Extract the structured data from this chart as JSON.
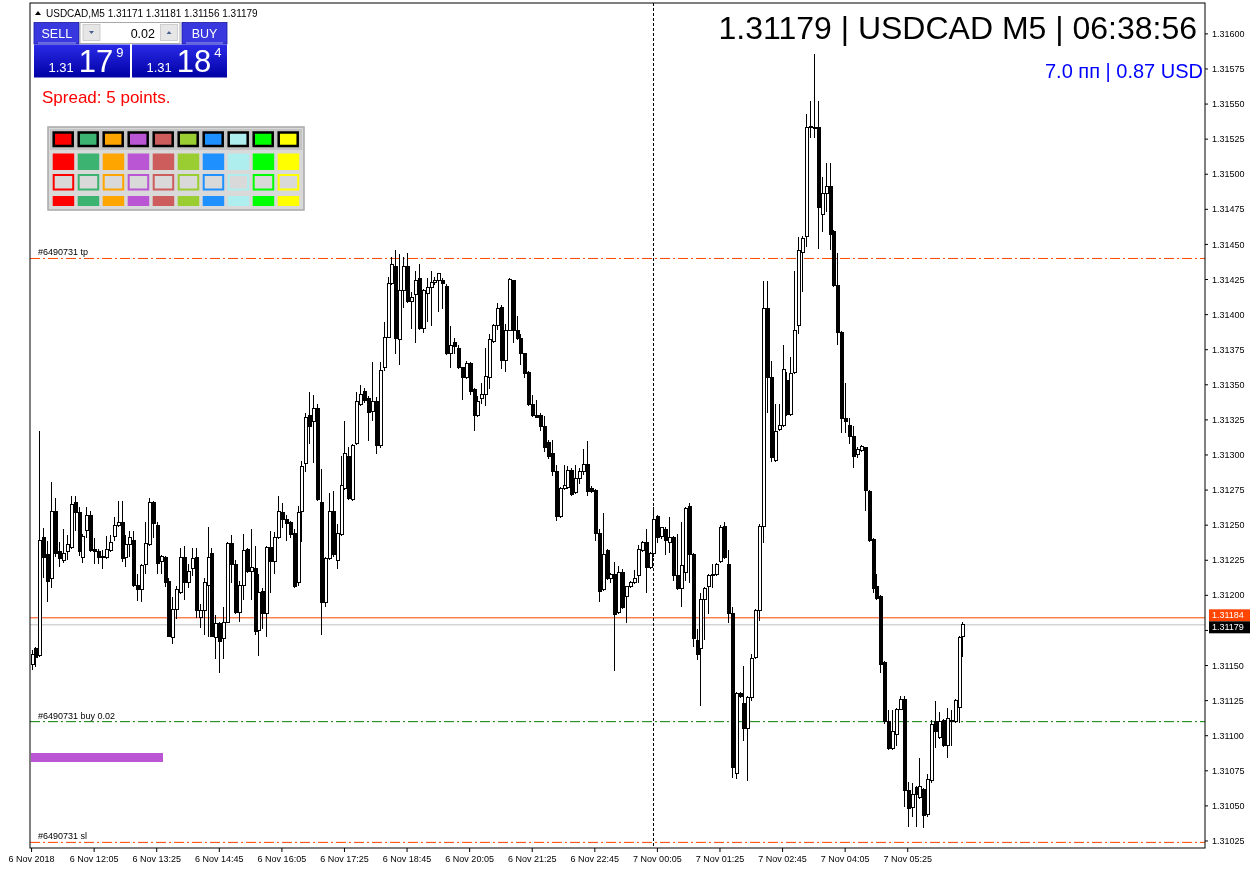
{
  "chart_data": {
    "type": "candlestick",
    "title": "1.31179 | USDCAD M5 | 06:38:56",
    "subtitle": "7.0 пп | 0.87 USD",
    "annotations": [
      "USDCAD,M5 1.31171 1.31181 1.31156 1.31179",
      "SELL",
      "0.02",
      "BUY",
      "1.31 17$^{9}$",
      "1.31 18$^{4}$",
      "Spread: 5 points."
    ],
    "color": "#000000",
    "x": [
      "2018-11-06T10:45",
      "2018-11-06T10:50",
      "2018-11-06T10:55",
      "2018-11-06T11:00",
      "2018-11-06T11:05",
      "2018-11-06T11:10",
      "2018-11-06T11:15",
      "2018-11-06T11:20",
      "2018-11-06T11:25",
      "2018-11-06T11:30",
      "2018-11-06T11:35",
      "2018-11-06T11:40",
      "2018-11-06T11:45",
      "2018-11-06T11:50",
      "2018-11-06T11:55",
      "2018-11-06T12:00",
      "2018-11-06T12:05",
      "2018-11-06T12:10",
      "2018-11-06T12:15",
      "2018-11-06T12:20",
      "2018-11-06T12:25",
      "2018-11-06T12:30",
      "2018-11-06T12:35",
      "2018-11-06T12:40",
      "2018-11-06T12:45",
      "2018-11-06T12:50",
      "2018-11-06T12:55",
      "2018-11-06T13:00",
      "2018-11-06T13:05",
      "2018-11-06T13:10",
      "2018-11-06T13:15",
      "2018-11-06T13:20",
      "2018-11-06T13:25",
      "2018-11-06T13:30",
      "2018-11-06T13:35",
      "2018-11-06T13:40",
      "2018-11-06T13:45",
      "2018-11-06T13:50",
      "2018-11-06T13:55",
      "2018-11-06T14:00",
      "2018-11-06T14:05",
      "2018-11-06T14:10",
      "2018-11-06T14:15",
      "2018-11-06T14:20",
      "2018-11-06T14:25",
      "2018-11-06T14:30",
      "2018-11-06T14:35",
      "2018-11-06T14:40",
      "2018-11-06T14:45",
      "2018-11-06T14:50",
      "2018-11-06T14:55",
      "2018-11-06T15:00",
      "2018-11-06T15:05",
      "2018-11-06T15:10",
      "2018-11-06T15:15",
      "2018-11-06T15:20",
      "2018-11-06T15:25",
      "2018-11-06T15:30",
      "2018-11-06T15:35",
      "2018-11-06T15:40",
      "2018-11-06T15:45",
      "2018-11-06T15:50",
      "2018-11-06T15:55",
      "2018-11-06T16:00",
      "2018-11-06T16:05",
      "2018-11-06T16:10",
      "2018-11-06T16:15",
      "2018-11-06T16:20",
      "2018-11-06T16:25",
      "2018-11-06T16:30",
      "2018-11-06T16:35",
      "2018-11-06T16:40",
      "2018-11-06T16:45",
      "2018-11-06T16:50",
      "2018-11-06T16:55",
      "2018-11-06T17:00",
      "2018-11-06T17:05",
      "2018-11-06T17:10",
      "2018-11-06T17:15",
      "2018-11-06T17:20",
      "2018-11-06T17:25",
      "2018-11-06T17:30",
      "2018-11-06T17:35",
      "2018-11-06T17:40",
      "2018-11-06T17:45",
      "2018-11-06T17:50",
      "2018-11-06T17:55",
      "2018-11-06T18:00",
      "2018-11-06T18:05",
      "2018-11-06T18:10",
      "2018-11-06T18:15",
      "2018-11-06T18:20",
      "2018-11-06T18:25",
      "2018-11-06T18:30",
      "2018-11-06T18:35",
      "2018-11-06T18:40",
      "2018-11-06T18:45",
      "2018-11-06T18:50",
      "2018-11-06T18:55",
      "2018-11-06T19:00",
      "2018-11-06T19:05",
      "2018-11-06T19:10",
      "2018-11-06T19:15",
      "2018-11-06T19:20",
      "2018-11-06T19:25",
      "2018-11-06T19:30",
      "2018-11-06T19:35",
      "2018-11-06T19:40",
      "2018-11-06T19:45",
      "2018-11-06T19:50",
      "2018-11-06T19:55",
      "2018-11-06T20:00",
      "2018-11-06T20:05",
      "2018-11-06T20:10",
      "2018-11-06T20:15",
      "2018-11-06T20:20",
      "2018-11-06T20:25",
      "2018-11-06T20:30",
      "2018-11-06T20:35",
      "2018-11-06T20:40",
      "2018-11-06T20:45",
      "2018-11-06T20:50",
      "2018-11-06T20:55",
      "2018-11-06T21:00",
      "2018-11-06T21:05",
      "2018-11-06T21:10",
      "2018-11-06T21:15",
      "2018-11-06T21:20",
      "2018-11-06T21:25",
      "2018-11-06T21:30",
      "2018-11-06T21:35",
      "2018-11-06T21:40",
      "2018-11-06T21:45",
      "2018-11-06T21:50",
      "2018-11-06T21:55",
      "2018-11-06T22:00",
      "2018-11-06T22:05",
      "2018-11-06T22:10",
      "2018-11-06T22:15",
      "2018-11-06T22:20",
      "2018-11-06T22:25",
      "2018-11-06T22:30",
      "2018-11-06T22:35",
      "2018-11-06T22:40",
      "2018-11-06T22:45",
      "2018-11-06T22:50",
      "2018-11-06T22:55",
      "2018-11-06T23:00",
      "2018-11-06T23:05",
      "2018-11-06T23:10",
      "2018-11-06T23:15",
      "2018-11-06T23:20",
      "2018-11-06T23:25",
      "2018-11-06T23:30",
      "2018-11-06T23:35",
      "2018-11-06T23:40",
      "2018-11-06T23:45",
      "2018-11-06T23:50",
      "2018-11-06T23:55",
      "2018-11-07T00:00",
      "2018-11-07T00:05",
      "2018-11-07T00:10",
      "2018-11-07T00:15",
      "2018-11-07T00:20",
      "2018-11-07T00:25",
      "2018-11-07T00:30",
      "2018-11-07T00:35",
      "2018-11-07T00:40",
      "2018-11-07T00:45",
      "2018-11-07T00:50",
      "2018-11-07T00:55",
      "2018-11-07T01:00",
      "2018-11-07T01:05",
      "2018-11-07T01:10",
      "2018-11-07T01:15",
      "2018-11-07T01:20",
      "2018-11-07T01:25",
      "2018-11-07T01:30",
      "2018-11-07T01:35",
      "2018-11-07T01:40",
      "2018-11-07T01:45",
      "2018-11-07T01:50",
      "2018-11-07T01:55",
      "2018-11-07T02:00",
      "2018-11-07T02:05",
      "2018-11-07T02:10",
      "2018-11-07T02:15",
      "2018-11-07T02:20",
      "2018-11-07T02:25",
      "2018-11-07T02:30",
      "2018-11-07T02:35",
      "2018-11-07T02:40",
      "2018-11-07T02:45",
      "2018-11-07T02:50",
      "2018-11-07T02:55",
      "2018-11-07T03:00",
      "2018-11-07T03:05",
      "2018-11-07T03:10",
      "2018-11-07T03:15",
      "2018-11-07T03:20",
      "2018-11-07T03:25",
      "2018-11-07T03:30",
      "2018-11-07T03:35",
      "2018-11-07T03:40",
      "2018-11-07T03:45",
      "2018-11-07T03:50",
      "2018-11-07T03:55",
      "2018-11-07T04:00",
      "2018-11-07T04:05",
      "2018-11-07T04:10",
      "2018-11-07T04:15",
      "2018-11-07T04:20",
      "2018-11-07T04:25",
      "2018-11-07T04:30",
      "2018-11-07T04:35",
      "2018-11-07T04:40",
      "2018-11-07T04:45",
      "2018-11-07T04:50",
      "2018-11-07T04:55",
      "2018-11-07T05:00",
      "2018-11-07T05:05",
      "2018-11-07T05:10",
      "2018-11-07T05:15",
      "2018-11-07T05:20",
      "2018-11-07T05:25",
      "2018-11-07T05:30",
      "2018-11-07T05:35",
      "2018-11-07T05:40",
      "2018-11-07T05:45",
      "2018-11-07T05:50",
      "2018-11-07T05:55",
      "2018-11-07T06:00",
      "2018-11-07T06:05",
      "2018-11-07T06:10",
      "2018-11-07T06:15",
      "2018-11-07T06:20",
      "2018-11-07T06:25",
      "2018-11-07T06:30",
      "2018-11-07T06:35"
    ],
    "ohlc": [
      [
        1.31151,
        1.31161,
        1.31147,
        1.31158
      ],
      [
        1.31162,
        1.31163,
        1.31149,
        1.31156
      ],
      [
        1.31157,
        1.31317,
        1.31156,
        1.31239
      ],
      [
        1.31241,
        1.31248,
        1.31212,
        1.31227
      ],
      [
        1.31229,
        1.31239,
        1.31195,
        1.3121
      ],
      [
        1.31212,
        1.31281,
        1.31205,
        1.3126
      ],
      [
        1.3126,
        1.31269,
        1.31227,
        1.3123
      ],
      [
        1.31231,
        1.31238,
        1.3122,
        1.31226
      ],
      [
        1.31225,
        1.31247,
        1.31223,
        1.3123
      ],
      [
        1.31231,
        1.31243,
        1.31225,
        1.31236
      ],
      [
        1.31234,
        1.31271,
        1.31233,
        1.31265
      ],
      [
        1.31266,
        1.31271,
        1.31246,
        1.31259
      ],
      [
        1.31259,
        1.31263,
        1.31228,
        1.31231
      ],
      [
        1.31227,
        1.31244,
        1.31223,
        1.31242
      ],
      [
        1.31246,
        1.31263,
        1.31241,
        1.31257
      ],
      [
        1.31257,
        1.3126,
        1.31231,
        1.31232
      ],
      [
        1.31233,
        1.31241,
        1.31222,
        1.31231
      ],
      [
        1.31231,
        1.31233,
        1.31222,
        1.31227
      ],
      [
        1.31227,
        1.31232,
        1.31219,
        1.31228
      ],
      [
        1.31227,
        1.31242,
        1.31226,
        1.31233
      ],
      [
        1.31232,
        1.31243,
        1.31231,
        1.31238
      ],
      [
        1.31242,
        1.31256,
        1.31239,
        1.3125
      ],
      [
        1.3125,
        1.31267,
        1.31249,
        1.31252
      ],
      [
        1.31252,
        1.31267,
        1.31224,
        1.31226
      ],
      [
        1.31227,
        1.31243,
        1.3122,
        1.31236
      ],
      [
        1.31236,
        1.31246,
        1.31227,
        1.31241
      ],
      [
        1.31239,
        1.31246,
        1.31206,
        1.31207
      ],
      [
        1.31207,
        1.31215,
        1.31196,
        1.31204
      ],
      [
        1.31204,
        1.31222,
        1.31195,
        1.31221
      ],
      [
        1.31222,
        1.31252,
        1.31215,
        1.31237
      ],
      [
        1.31236,
        1.31269,
        1.31235,
        1.31266
      ],
      [
        1.31266,
        1.31267,
        1.31241,
        1.31251
      ],
      [
        1.3125,
        1.31252,
        1.31215,
        1.31223
      ],
      [
        1.31224,
        1.31229,
        1.31215,
        1.31228
      ],
      [
        1.31227,
        1.31228,
        1.31206,
        1.31209
      ],
      [
        1.3121,
        1.31212,
        1.3117,
        1.31171
      ],
      [
        1.3117,
        1.31199,
        1.31165,
        1.3119
      ],
      [
        1.3119,
        1.31207,
        1.31183,
        1.31204
      ],
      [
        1.31202,
        1.31234,
        1.31201,
        1.31227
      ],
      [
        1.31227,
        1.31235,
        1.31197,
        1.31209
      ],
      [
        1.31209,
        1.31222,
        1.31205,
        1.31217
      ],
      [
        1.31219,
        1.31234,
        1.31214,
        1.31226
      ],
      [
        1.31227,
        1.31234,
        1.31184,
        1.31189
      ],
      [
        1.31184,
        1.31194,
        1.31177,
        1.31189
      ],
      [
        1.31189,
        1.31212,
        1.31172,
        1.31209
      ],
      [
        1.31207,
        1.31249,
        1.3117,
        1.31227
      ],
      [
        1.3123,
        1.31234,
        1.3117,
        1.31171
      ],
      [
        1.3117,
        1.31186,
        1.31155,
        1.3118
      ],
      [
        1.3118,
        1.31181,
        1.31145,
        1.31167
      ],
      [
        1.31169,
        1.31192,
        1.31155,
        1.31181
      ],
      [
        1.31181,
        1.31238,
        1.3118,
        1.31237
      ],
      [
        1.31237,
        1.31243,
        1.31209,
        1.31222
      ],
      [
        1.31222,
        1.31225,
        1.31187,
        1.31188
      ],
      [
        1.31188,
        1.3121,
        1.31181,
        1.31207
      ],
      [
        1.31207,
        1.31244,
        1.31197,
        1.31232
      ],
      [
        1.31233,
        1.31234,
        1.31216,
        1.31217
      ],
      [
        1.31217,
        1.31247,
        1.31197,
        1.3122
      ],
      [
        1.31219,
        1.31235,
        1.31172,
        1.31174
      ],
      [
        1.31175,
        1.31215,
        1.31157,
        1.31202
      ],
      [
        1.31203,
        1.31205,
        1.31176,
        1.31187
      ],
      [
        1.31187,
        1.31235,
        1.3117,
        1.31234
      ],
      [
        1.31234,
        1.31246,
        1.31202,
        1.31224
      ],
      [
        1.31224,
        1.31245,
        1.31215,
        1.31241
      ],
      [
        1.31241,
        1.31271,
        1.3124,
        1.3126
      ],
      [
        1.31259,
        1.31266,
        1.31248,
        1.31254
      ],
      [
        1.31254,
        1.31257,
        1.31239,
        1.31251
      ],
      [
        1.31252,
        1.31253,
        1.31241,
        1.31243
      ],
      [
        1.31244,
        1.31247,
        1.31205,
        1.31206
      ],
      [
        1.31209,
        1.31264,
        1.31207,
        1.31259
      ],
      [
        1.3126,
        1.31296,
        1.31238,
        1.31292
      ],
      [
        1.31294,
        1.3133,
        1.31288,
        1.31327
      ],
      [
        1.31328,
        1.31345,
        1.31308,
        1.3132
      ],
      [
        1.31324,
        1.31343,
        1.31294,
        1.31333
      ],
      [
        1.31333,
        1.31336,
        1.31267,
        1.31268
      ],
      [
        1.31266,
        1.3129,
        1.31172,
        1.31195
      ],
      [
        1.31195,
        1.31227,
        1.31192,
        1.31226
      ],
      [
        1.31226,
        1.31273,
        1.31225,
        1.3126
      ],
      [
        1.3126,
        1.31274,
        1.31227,
        1.31229
      ],
      [
        1.31225,
        1.31251,
        1.31219,
        1.31244
      ],
      [
        1.31243,
        1.31299,
        1.31242,
        1.31278
      ],
      [
        1.31276,
        1.31324,
        1.31275,
        1.31301
      ],
      [
        1.31299,
        1.31306,
        1.31268,
        1.31269
      ],
      [
        1.31268,
        1.31308,
        1.31267,
        1.31307
      ],
      [
        1.31308,
        1.31345,
        1.31307,
        1.31338
      ],
      [
        1.31336,
        1.3135,
        1.31335,
        1.31343
      ],
      [
        1.31345,
        1.31348,
        1.31337,
        1.31339
      ],
      [
        1.3134,
        1.31342,
        1.3131,
        1.3133
      ],
      [
        1.31331,
        1.31366,
        1.31324,
        1.31338
      ],
      [
        1.31338,
        1.31341,
        1.31301,
        1.31307
      ],
      [
        1.31307,
        1.31366,
        1.31305,
        1.3136
      ],
      [
        1.31362,
        1.31395,
        1.3136,
        1.31384
      ],
      [
        1.31384,
        1.31427,
        1.31383,
        1.31422
      ],
      [
        1.31422,
        1.31441,
        1.31421,
        1.31436
      ],
      [
        1.31434,
        1.31446,
        1.31372,
        1.31383
      ],
      [
        1.31382,
        1.31443,
        1.31364,
        1.31417
      ],
      [
        1.31417,
        1.31441,
        1.31405,
        1.31434
      ],
      [
        1.31434,
        1.31444,
        1.31408,
        1.31409
      ],
      [
        1.31409,
        1.31416,
        1.3139,
        1.31412
      ],
      [
        1.31414,
        1.31431,
        1.3138,
        1.31424
      ],
      [
        1.31426,
        1.31436,
        1.31389,
        1.3139
      ],
      [
        1.3139,
        1.31418,
        1.31387,
        1.31417
      ],
      [
        1.31415,
        1.31426,
        1.31395,
        1.31419
      ],
      [
        1.31419,
        1.31431,
        1.31392,
        1.31423
      ],
      [
        1.31423,
        1.31427,
        1.31421,
        1.31424
      ],
      [
        1.31424,
        1.3143,
        1.31402,
        1.31429
      ],
      [
        1.31424,
        1.31426,
        1.31404,
        1.31422
      ],
      [
        1.3142,
        1.31422,
        1.31371,
        1.31372
      ],
      [
        1.31372,
        1.31392,
        1.31362,
        1.31378
      ],
      [
        1.3138,
        1.31383,
        1.31372,
        1.31377
      ],
      [
        1.31376,
        1.31378,
        1.31361,
        1.31362
      ],
      [
        1.31362,
        1.31363,
        1.31339,
        1.31355
      ],
      [
        1.31355,
        1.31367,
        1.31354,
        1.31365
      ],
      [
        1.31365,
        1.31366,
        1.31343,
        1.31345
      ],
      [
        1.31347,
        1.31348,
        1.31317,
        1.31328
      ],
      [
        1.31328,
        1.31342,
        1.31327,
        1.31338
      ],
      [
        1.3134,
        1.31351,
        1.31336,
        1.31343
      ],
      [
        1.31343,
        1.31376,
        1.31335,
        1.31356
      ],
      [
        1.31355,
        1.31386,
        1.31347,
        1.31382
      ],
      [
        1.31381,
        1.31393,
        1.3138,
        1.31392
      ],
      [
        1.31392,
        1.31408,
        1.31389,
        1.31404
      ],
      [
        1.31405,
        1.31407,
        1.31361,
        1.31367
      ],
      [
        1.31367,
        1.31393,
        1.31359,
        1.31389
      ],
      [
        1.31389,
        1.31426,
        1.31388,
        1.31425
      ],
      [
        1.31424,
        1.31425,
        1.3138,
        1.31389
      ],
      [
        1.31389,
        1.31399,
        1.31382,
        1.31383
      ],
      [
        1.31383,
        1.31386,
        1.31364,
        1.31372
      ],
      [
        1.31372,
        1.31373,
        1.31355,
        1.31358
      ],
      [
        1.31359,
        1.3136,
        1.31335,
        1.31336
      ],
      [
        1.31336,
        1.31343,
        1.31327,
        1.31328
      ],
      [
        1.31328,
        1.31339,
        1.31326,
        1.31327
      ],
      [
        1.31328,
        1.3133,
        1.31317,
        1.3132
      ],
      [
        1.3132,
        1.31328,
        1.31302,
        1.31305
      ],
      [
        1.31309,
        1.31311,
        1.31297,
        1.31299
      ],
      [
        1.31301,
        1.31311,
        1.31285,
        1.31288
      ],
      [
        1.31288,
        1.31293,
        1.31253,
        1.31256
      ],
      [
        1.31256,
        1.31277,
        1.31255,
        1.31276
      ],
      [
        1.31276,
        1.31293,
        1.31275,
        1.31278
      ],
      [
        1.31277,
        1.31292,
        1.31276,
        1.31289
      ],
      [
        1.31289,
        1.31291,
        1.31271,
        1.31272
      ],
      [
        1.31273,
        1.31293,
        1.31272,
        1.31283
      ],
      [
        1.31283,
        1.31291,
        1.31279,
        1.31288
      ],
      [
        1.31288,
        1.31304,
        1.31286,
        1.31293
      ],
      [
        1.31293,
        1.3131,
        1.31271,
        1.31274
      ],
      [
        1.31276,
        1.31278,
        1.31273,
        1.31274
      ],
      [
        1.31275,
        1.31276,
        1.31239,
        1.31244
      ],
      [
        1.31244,
        1.31247,
        1.31195,
        1.31203
      ],
      [
        1.31204,
        1.31259,
        1.31203,
        1.31229
      ],
      [
        1.31232,
        1.31233,
        1.31211,
        1.31212
      ],
      [
        1.31212,
        1.31216,
        1.31209,
        1.31215
      ],
      [
        1.31215,
        1.31224,
        1.31146,
        1.31186
      ],
      [
        1.31188,
        1.31221,
        1.31187,
        1.31216
      ],
      [
        1.31216,
        1.31219,
        1.3119,
        1.31191
      ],
      [
        1.31199,
        1.31207,
        1.3118,
        1.31206
      ],
      [
        1.31206,
        1.3121,
        1.31205,
        1.31209
      ],
      [
        1.31209,
        1.31218,
        1.31208,
        1.31212
      ],
      [
        1.31214,
        1.31236,
        1.31209,
        1.31233
      ],
      [
        1.31232,
        1.31239,
        1.31231,
        1.31238
      ],
      [
        1.31238,
        1.31247,
        1.31202,
        1.3122
      ],
      [
        1.3122,
        1.31231,
        1.31219,
        1.3123
      ],
      [
        1.3123,
        1.31263,
        1.31227,
        1.31254
      ],
      [
        1.31256,
        1.31257,
        1.31237,
        1.31241
      ],
      [
        1.31242,
        1.31249,
        1.3124,
        1.31248
      ],
      [
        1.31247,
        1.31249,
        1.31229,
        1.31239
      ],
      [
        1.31238,
        1.31256,
        1.3123,
        1.31241
      ],
      [
        1.31241,
        1.31242,
        1.3121,
        1.31214
      ],
      [
        1.31214,
        1.31244,
        1.31204,
        1.31205
      ],
      [
        1.31205,
        1.31252,
        1.31192,
        1.31221
      ],
      [
        1.31216,
        1.31263,
        1.3121,
        1.31262
      ],
      [
        1.31263,
        1.31266,
        1.31209,
        1.31229
      ],
      [
        1.31229,
        1.3123,
        1.31163,
        1.31169
      ],
      [
        1.31168,
        1.31176,
        1.31154,
        1.31158
      ],
      [
        1.31162,
        1.31202,
        1.31121,
        1.31197
      ],
      [
        1.31197,
        1.31206,
        1.31168,
        1.31205
      ],
      [
        1.31206,
        1.31215,
        1.31187,
        1.31214
      ],
      [
        1.31214,
        1.31222,
        1.31205,
        1.31215
      ],
      [
        1.31215,
        1.31223,
        1.31214,
        1.31222
      ],
      [
        1.31224,
        1.3125,
        1.31223,
        1.31248
      ],
      [
        1.31249,
        1.31252,
        1.31226,
        1.31227
      ],
      [
        1.31222,
        1.31232,
        1.3118,
        1.31187
      ],
      [
        1.31187,
        1.31192,
        1.3107,
        1.31077
      ],
      [
        1.31073,
        1.31131,
        1.31069,
        1.3113
      ],
      [
        1.3113,
        1.31131,
        1.31127,
        1.31128
      ],
      [
        1.31123,
        1.3115,
        1.31096,
        1.31105
      ],
      [
        1.31105,
        1.31128,
        1.31068,
        1.31127
      ],
      [
        1.31127,
        1.31158,
        1.31125,
        1.31155
      ],
      [
        1.31156,
        1.3119,
        1.31155,
        1.31189
      ],
      [
        1.31189,
        1.31251,
        1.31182,
        1.31249
      ],
      [
        1.31249,
        1.31424,
        1.31237,
        1.31404
      ],
      [
        1.31404,
        1.31424,
        1.3133,
        1.31355
      ],
      [
        1.31355,
        1.31367,
        1.31295,
        1.31298
      ],
      [
        1.31296,
        1.31336,
        1.31295,
        1.31317
      ],
      [
        1.31318,
        1.31336,
        1.31317,
        1.31321
      ],
      [
        1.31321,
        1.31378,
        1.3132,
        1.31361
      ],
      [
        1.31353,
        1.31359,
        1.31328,
        1.31329
      ],
      [
        1.31329,
        1.3137,
        1.31328,
        1.31358
      ],
      [
        1.31359,
        1.31431,
        1.31358,
        1.31389
      ],
      [
        1.31392,
        1.31455,
        1.31386,
        1.31446
      ],
      [
        1.31444,
        1.31456,
        1.31416,
        1.31454
      ],
      [
        1.31456,
        1.31543,
        1.31448,
        1.31533
      ],
      [
        1.31533,
        1.31552,
        1.31526,
        1.31534
      ],
      [
        1.31533,
        1.31586,
        1.31526,
        1.31533
      ],
      [
        1.31533,
        1.31552,
        1.31447,
        1.31476
      ],
      [
        1.31471,
        1.31498,
        1.31459,
        1.31486
      ],
      [
        1.31486,
        1.31508,
        1.31473,
        1.31491
      ],
      [
        1.31491,
        1.31508,
        1.31446,
        1.31457
      ],
      [
        1.31459,
        1.3146,
        1.3142,
        1.31421
      ],
      [
        1.31421,
        1.31444,
        1.31378,
        1.31387
      ],
      [
        1.31387,
        1.31388,
        1.31316,
        1.31326
      ],
      [
        1.31326,
        1.31351,
        1.31316,
        1.31324
      ],
      [
        1.31321,
        1.31326,
        1.31308,
        1.31313
      ],
      [
        1.31313,
        1.31321,
        1.31291,
        1.31299
      ],
      [
        1.313,
        1.31306,
        1.31298,
        1.31304
      ],
      [
        1.31303,
        1.31307,
        1.31302,
        1.31306
      ],
      [
        1.31305,
        1.31306,
        1.3126,
        1.31275
      ],
      [
        1.31274,
        1.31275,
        1.31238,
        1.31239
      ],
      [
        1.3124,
        1.31241,
        1.31202,
        1.31205
      ],
      [
        1.31206,
        1.31215,
        1.31197,
        1.31198
      ],
      [
        1.31199,
        1.312,
        1.31145,
        1.31151
      ],
      [
        1.31152,
        1.31153,
        1.31108,
        1.3111
      ],
      [
        1.3111,
        1.31118,
        1.3109,
        1.31091
      ],
      [
        1.31091,
        1.31118,
        1.3109,
        1.31103
      ],
      [
        1.31101,
        1.3112,
        1.31093,
        1.31119
      ],
      [
        1.31119,
        1.31128,
        1.31118,
        1.31126
      ],
      [
        1.31126,
        1.31128,
        1.31049,
        1.31061
      ],
      [
        1.31061,
        1.31067,
        1.31035,
        1.31048
      ],
      [
        1.31049,
        1.31066,
        1.31042,
        1.31058
      ],
      [
        1.31063,
        1.31064,
        1.31035,
        1.31058
      ],
      [
        1.31056,
        1.31084,
        1.31055,
        1.31064
      ],
      [
        1.31062,
        1.31063,
        1.31034,
        1.31043
      ],
      [
        1.31044,
        1.31073,
        1.31042,
        1.31069
      ],
      [
        1.31068,
        1.31111,
        1.31066,
        1.31108
      ],
      [
        1.3111,
        1.31125,
        1.31091,
        1.31103
      ],
      [
        1.31099,
        1.31117,
        1.31098,
        1.3111
      ],
      [
        1.31111,
        1.31112,
        1.31092,
        1.31093
      ],
      [
        1.31093,
        1.3112,
        1.31084,
        1.31112
      ],
      [
        1.31111,
        1.31118,
        1.31093,
        1.3111
      ],
      [
        1.3111,
        1.31126,
        1.31109,
        1.31125
      ],
      [
        1.3112,
        1.31171,
        1.31109,
        1.3117
      ],
      [
        1.31171,
        1.31181,
        1.31156,
        1.31179
      ]
    ],
    "xlim": [
      "2018-11-06T10:43",
      "2018-11-07T11:45"
    ],
    "ylim": [
      1.3102,
      1.31622
    ],
    "xticks": [
      {
        "value": "2018-11-06T10:45",
        "label": "6 Nov 2018"
      },
      {
        "value": "2018-11-06T12:05",
        "label": "6 Nov 12:05"
      },
      {
        "value": "2018-11-06T13:25",
        "label": "6 Nov 13:25"
      },
      {
        "value": "2018-11-06T14:45",
        "label": "6 Nov 14:45"
      },
      {
        "value": "2018-11-06T16:05",
        "label": "6 Nov 16:05"
      },
      {
        "value": "2018-11-06T17:25",
        "label": "6 Nov 17:25"
      },
      {
        "value": "2018-11-06T18:45",
        "label": "6 Nov 18:45"
      },
      {
        "value": "2018-11-06T20:05",
        "label": "6 Nov 20:05"
      },
      {
        "value": "2018-11-06T21:25",
        "label": "6 Nov 21:25"
      },
      {
        "value": "2018-11-06T22:45",
        "label": "6 Nov 22:45"
      },
      {
        "value": "2018-11-07T00:05",
        "label": "7 Nov 00:05"
      },
      {
        "value": "2018-11-07T01:25",
        "label": "7 Nov 01:25"
      },
      {
        "value": "2018-11-07T02:45",
        "label": "7 Nov 02:45"
      },
      {
        "value": "2018-11-07T04:05",
        "label": "7 Nov 04:05"
      },
      {
        "value": "2018-11-07T05:25",
        "label": "7 Nov 05:25"
      }
    ],
    "yticks": [
      1.31025,
      {
        "value": 1.3105,
        "label": "1.31050"
      },
      1.31075,
      {
        "value": 1.311,
        "label": "1.31100"
      },
      1.31125,
      {
        "value": 1.3115,
        "label": "1.31150"
      },
      {
        "value": 1.31175,
        "label": null
      },
      {
        "value": 1.312,
        "label": "1.31200"
      },
      1.31225,
      {
        "value": 1.3125,
        "label": "1.31250"
      },
      1.31275,
      {
        "value": 1.313,
        "label": "1.31300"
      },
      1.31325,
      {
        "value": 1.3135,
        "label": "1.31350"
      },
      1.31375,
      {
        "value": 1.314,
        "label": "1.31400"
      },
      1.31425,
      {
        "value": 1.3145,
        "label": "1.31450"
      },
      1.31475,
      {
        "value": 1.315,
        "label": "1.31500"
      },
      1.31525,
      {
        "value": 1.3155,
        "label": "1.31550"
      },
      1.31575,
      {
        "value": 1.316,
        "label": "1.31600"
      }
    ],
    "ref_lines": [
      {
        "axis": "y",
        "value": 1.3144,
        "label": "#6490731 tp",
        "color": "#ff4500",
        "line_style": "dashed"
      },
      {
        "axis": "y",
        "value": 1.3111,
        "label": "#6490731 buy 0.02",
        "color": "#008000",
        "line_style": "dashed"
      },
      {
        "axis": "y",
        "value": 1.31024,
        "label": "#6490731 sl",
        "color": "#ff4500",
        "line_style": "dashed"
      },
      {
        "axis": "y",
        "value": 1.31184,
        "label": "1.31184",
        "color": "#ff4500",
        "line_style": "solid"
      },
      {
        "axis": "y",
        "value": 1.31179,
        "label": "1.31179",
        "color": "#c0c0c0",
        "line_style": "solid"
      },
      {
        "axis": "x",
        "value": "2018-11-07T00:00",
        "color": "#000000",
        "line_style": "dotted"
      }
    ]
  }
}
